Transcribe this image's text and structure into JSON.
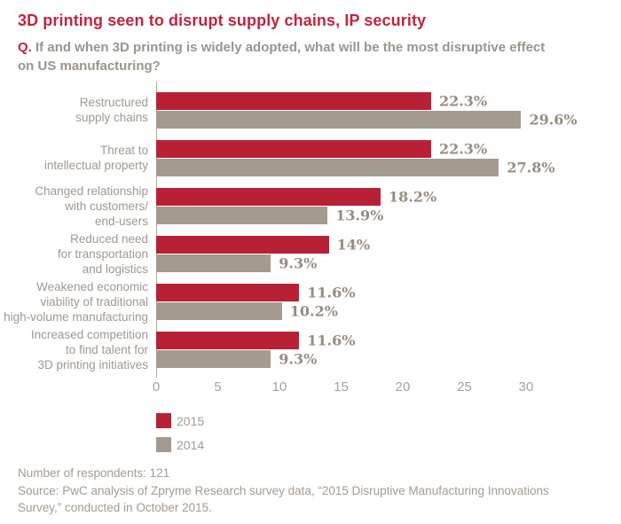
{
  "title": "3D printing seen to disrupt supply chains, IP security",
  "question": {
    "prefix": "Q.",
    "text": "If and when 3D printing is widely adopted, what will be the most disruptive effect on US manufacturing?"
  },
  "chart_data": {
    "type": "bar",
    "orientation": "horizontal",
    "categories": [
      [
        "Restructured",
        "supply chains"
      ],
      [
        "Threat to",
        "intellectual property"
      ],
      [
        "Changed relationship",
        "with customers/",
        "end-users"
      ],
      [
        "Reduced need",
        "for transportation",
        "and logistics"
      ],
      [
        "Weakened economic",
        "viability of traditional",
        "high-volume manufacturing"
      ],
      [
        "Increased competition",
        "to find talent for",
        "3D printing initiatives"
      ]
    ],
    "series": [
      {
        "name": "2015",
        "color": "#b82135",
        "values": [
          22.3,
          22.3,
          18.2,
          14,
          11.6,
          11.6
        ],
        "labels": [
          "22.3%",
          "22.3%",
          "18.2%",
          "14%",
          "11.6%",
          "11.6%"
        ]
      },
      {
        "name": "2014",
        "color": "#a49a90",
        "values": [
          29.6,
          27.8,
          13.9,
          9.3,
          10.2,
          9.3
        ],
        "labels": [
          "29.6%",
          "27.8%",
          "13.9%",
          "9.3%",
          "10.2%",
          "9.3%"
        ]
      }
    ],
    "xlabel": "",
    "ylabel": "",
    "xlim": [
      0,
      33
    ],
    "xticks": [
      0,
      5,
      10,
      15,
      20,
      25,
      30
    ],
    "grid": false,
    "legend_position": "bottom-left"
  },
  "legend": [
    {
      "label": "2015",
      "color": "#b82135"
    },
    {
      "label": "2014",
      "color": "#a49a90"
    }
  ],
  "footer": {
    "lines": [
      "Number of respondents: 121",
      "Source: PwC analysis of Zpryme Research survey data, “2015 Disruptive Manufacturing Innovations",
      "Survey,” conducted in October 2015."
    ]
  }
}
